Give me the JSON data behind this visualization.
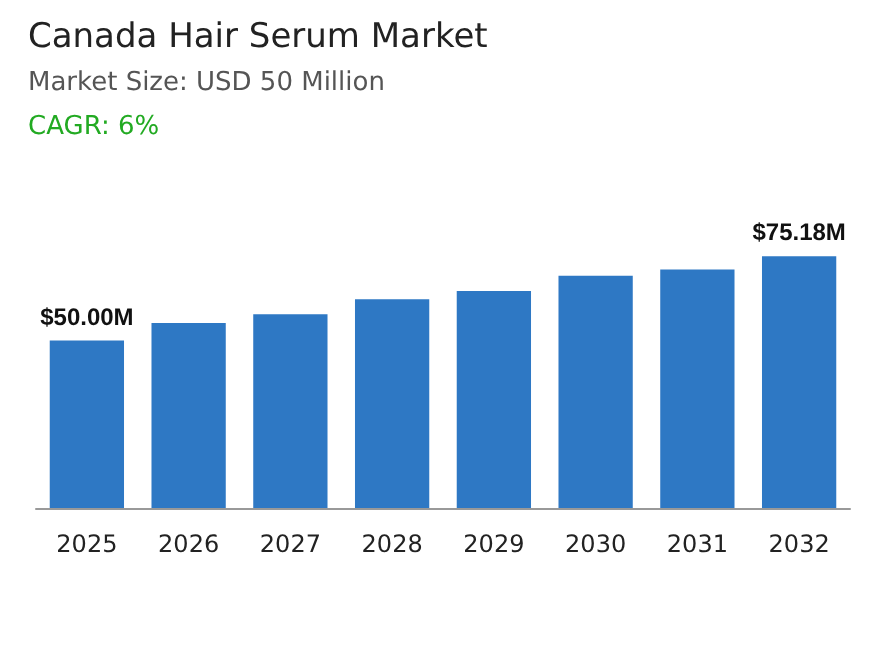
{
  "chart_data": {
    "type": "bar",
    "title": "Canada Hair Serum Market",
    "subtitle": "Market Size: USD 50 Million",
    "annotations": [
      "CAGR: 6%"
    ],
    "categories": [
      "2025",
      "2026",
      "2027",
      "2028",
      "2029",
      "2030",
      "2031",
      "2032"
    ],
    "values": [
      50.0,
      55.2,
      57.8,
      62.3,
      64.8,
      69.3,
      71.2,
      75.18
    ],
    "value_labels": [
      "$50.00M",
      null,
      null,
      null,
      null,
      null,
      null,
      "$75.18M"
    ],
    "color": "#2e78c4"
  }
}
